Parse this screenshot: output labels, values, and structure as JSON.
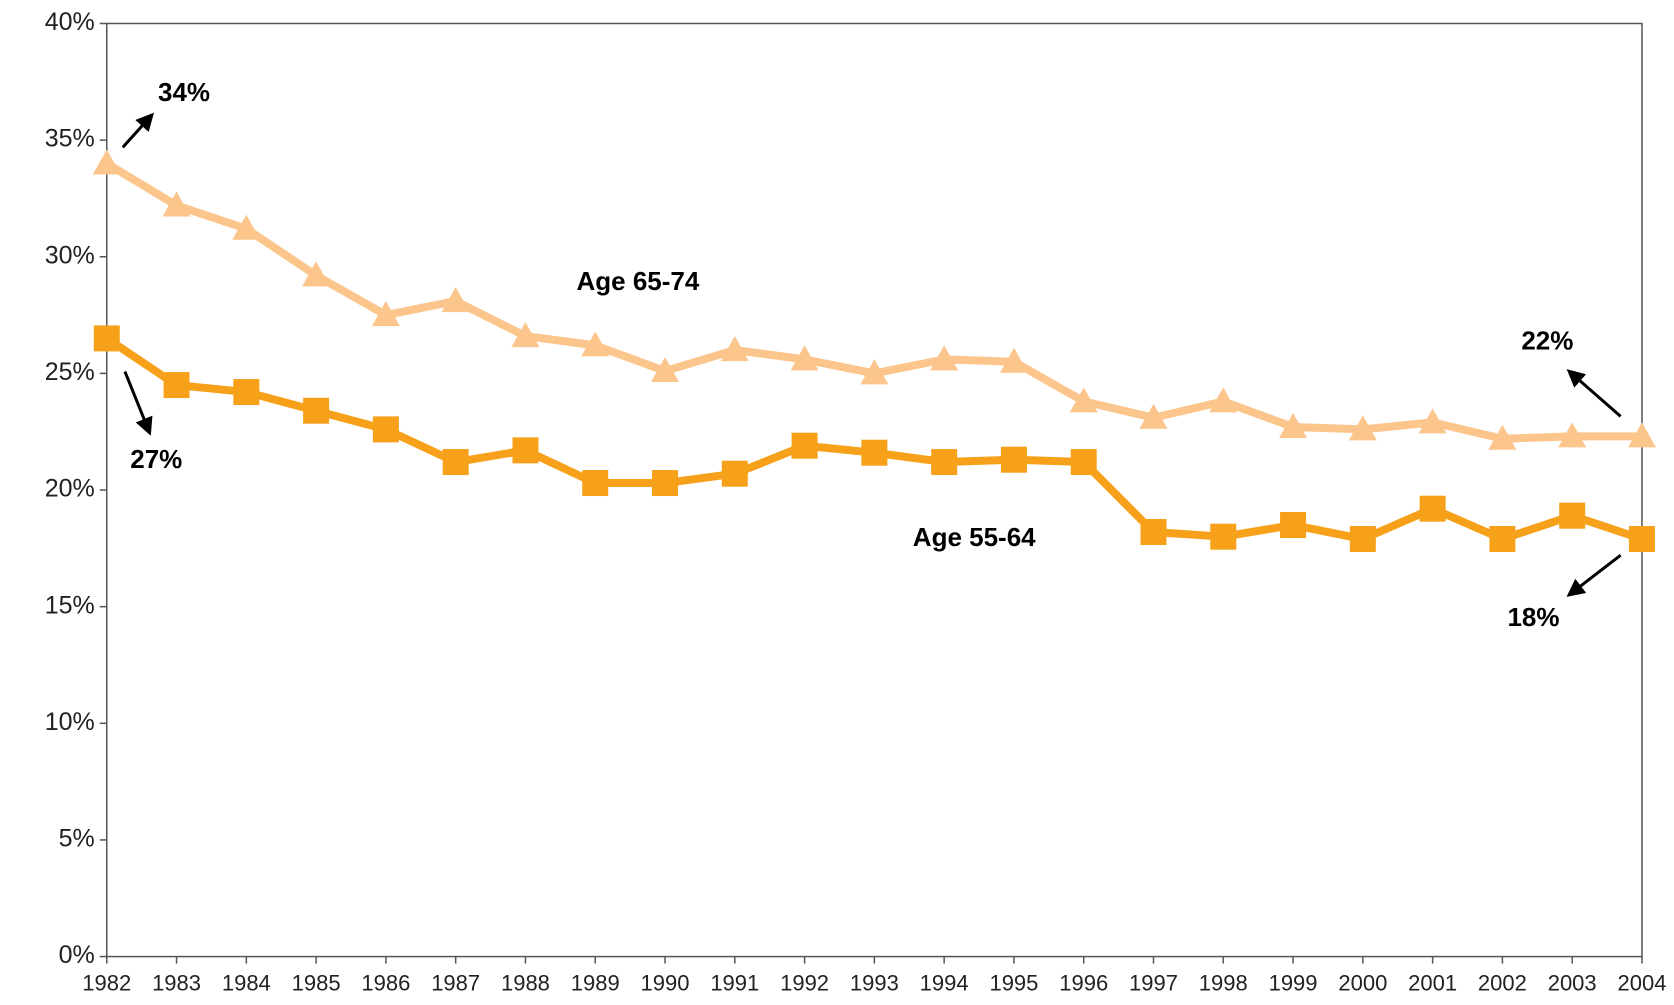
{
  "chart_data": {
    "type": "line",
    "categories": [
      "1982",
      "1983",
      "1984",
      "1985",
      "1986",
      "1987",
      "1988",
      "1989",
      "1990",
      "1991",
      "1992",
      "1993",
      "1994",
      "1995",
      "1996",
      "1997",
      "1998",
      "1999",
      "2000",
      "2001",
      "2002",
      "2003",
      "2004"
    ],
    "series": [
      {
        "name": "Age 65-74",
        "color": "#fbc58c",
        "marker": "triangle",
        "values": [
          34.0,
          32.2,
          31.2,
          29.2,
          27.5,
          28.1,
          26.6,
          26.2,
          25.1,
          26.0,
          25.6,
          25.0,
          25.6,
          25.5,
          23.8,
          23.1,
          23.8,
          22.7,
          22.6,
          22.9,
          22.2,
          22.3,
          22.3
        ]
      },
      {
        "name": "Age 55-64",
        "color": "#f7a11a",
        "marker": "square",
        "values": [
          26.5,
          24.5,
          24.2,
          23.4,
          22.6,
          21.2,
          21.7,
          20.3,
          20.3,
          20.7,
          21.9,
          21.6,
          21.2,
          21.3,
          21.2,
          18.2,
          18.0,
          18.5,
          17.9,
          19.2,
          17.9,
          18.9,
          17.9
        ]
      }
    ],
    "annotations": [
      {
        "text": "34%"
      },
      {
        "text": "27%"
      },
      {
        "text": "22%"
      },
      {
        "text": "18%"
      }
    ],
    "ylim": [
      0,
      40
    ],
    "yticks": [
      {
        "value": 0,
        "label": "0%"
      },
      {
        "value": 5,
        "label": "5%"
      },
      {
        "value": 10,
        "label": "10%"
      },
      {
        "value": 15,
        "label": "15%"
      },
      {
        "value": 20,
        "label": "20%"
      },
      {
        "value": 25,
        "label": "25%"
      },
      {
        "value": 30,
        "label": "30%"
      },
      {
        "value": 35,
        "label": "35%"
      },
      {
        "value": 40,
        "label": "40%"
      }
    ],
    "grid": false
  }
}
